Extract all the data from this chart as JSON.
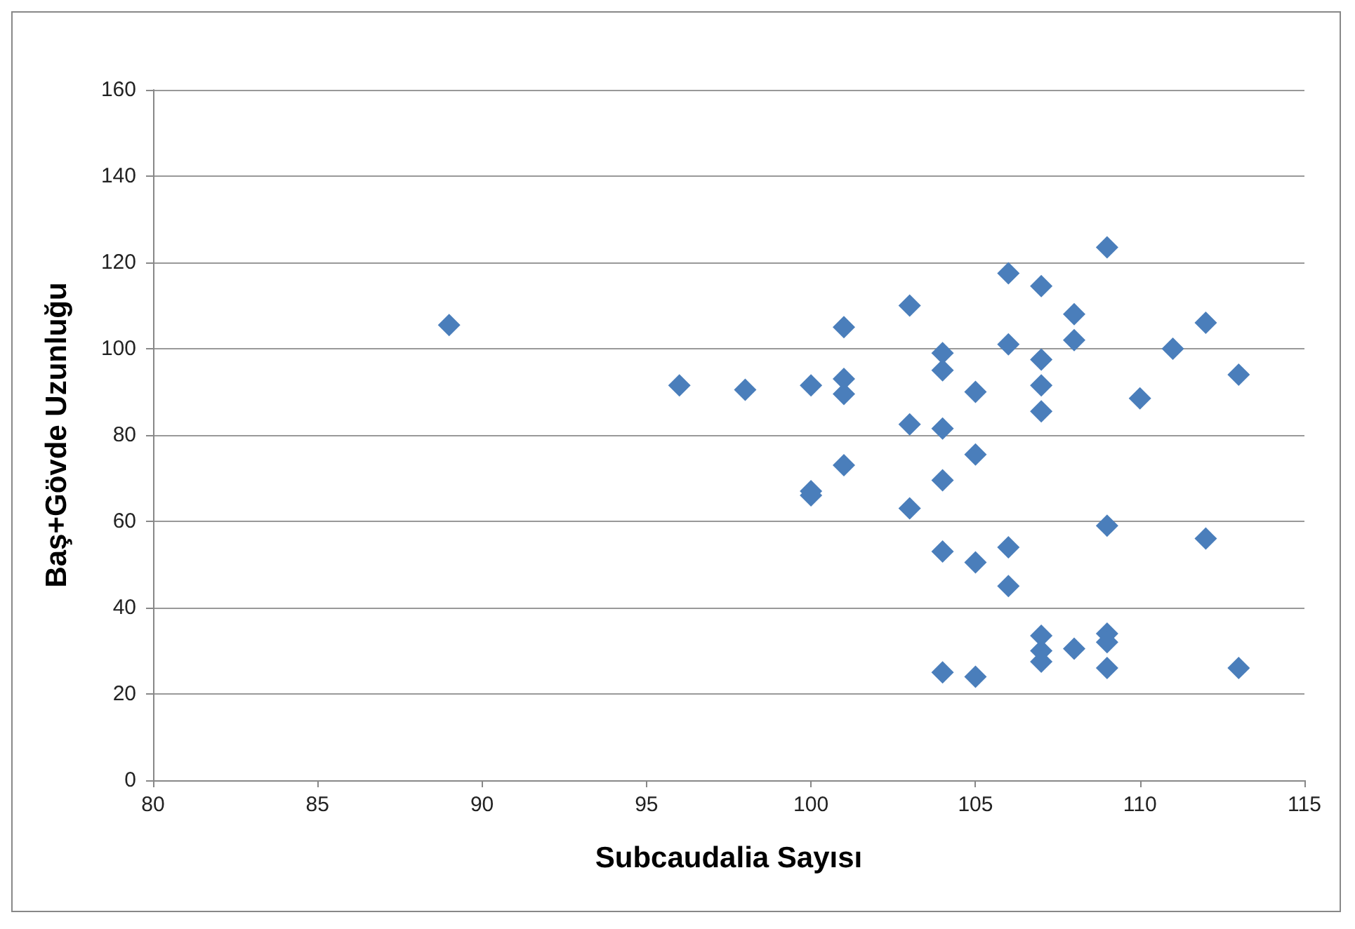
{
  "chart_data": {
    "type": "scatter",
    "xlabel": "Subcaudalia Sayısı",
    "ylabel": "Baş+Gövde Uzunluğu",
    "x": [
      89,
      96,
      98,
      100,
      100,
      100,
      101,
      101,
      101,
      101,
      103,
      103,
      103,
      104,
      104,
      104,
      104,
      104,
      104,
      105,
      105,
      105,
      105,
      106,
      106,
      106,
      106,
      107,
      107,
      107,
      107,
      107,
      107,
      107,
      108,
      108,
      108,
      109,
      109,
      109,
      109,
      109,
      110,
      111,
      112,
      112,
      113,
      113
    ],
    "series": [
      {
        "color": "#4a7ebb",
        "values": [
          105.5,
          91.5,
          90.5,
          91.5,
          67,
          66,
          105,
          93,
          89.5,
          73,
          110,
          82.5,
          63,
          99,
          95,
          81.5,
          69.5,
          53,
          25,
          90,
          75.5,
          50.5,
          24,
          117.5,
          101,
          54,
          45,
          114.5,
          97.5,
          91.5,
          85.5,
          33.5,
          30,
          27.5,
          108,
          102,
          30.5,
          123.5,
          59,
          34,
          32,
          26,
          88.5,
          100,
          106,
          56,
          94,
          26
        ]
      }
    ],
    "xlim": [
      80,
      115
    ],
    "xticks": [
      80,
      85,
      90,
      95,
      100,
      105,
      110,
      115
    ],
    "ylim": [
      0,
      160
    ],
    "yticks": [
      0,
      20,
      40,
      60,
      80,
      100,
      120,
      140,
      160
    ],
    "grid": "y",
    "marker": "diamond"
  }
}
